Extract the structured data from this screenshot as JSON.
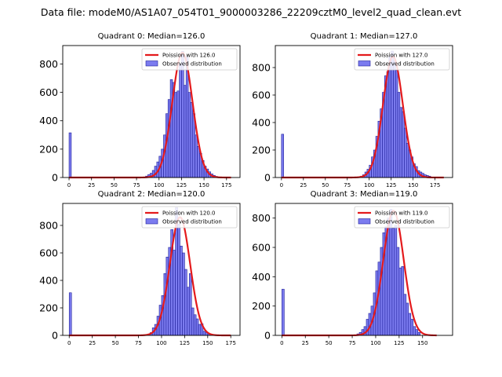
{
  "figure": {
    "suptitle": "Data file: modeM0/AS1A07_054T01_9000003286_22209cztM0_level2_quad_clean.evt"
  },
  "colors": {
    "bar_fill": "#7b7bef",
    "bar_edge": "#1f1f99",
    "poisson_line": "#e41a1c",
    "axis": "#000000"
  },
  "chart_data": [
    {
      "type": "bar",
      "title": "Quadrant 0: Median=126.0",
      "xlim": [
        -7,
        190
      ],
      "ylim": [
        0,
        930
      ],
      "xticks": [
        0,
        25,
        50,
        75,
        100,
        125,
        150,
        175
      ],
      "yticks": [
        0,
        200,
        400,
        600,
        800
      ],
      "bin_width": 2.5,
      "bins": [
        {
          "x": 0,
          "y": 315
        },
        {
          "x": 85,
          "y": 10
        },
        {
          "x": 87.5,
          "y": 20
        },
        {
          "x": 90,
          "y": 30
        },
        {
          "x": 92.5,
          "y": 50
        },
        {
          "x": 95,
          "y": 80
        },
        {
          "x": 97.5,
          "y": 110
        },
        {
          "x": 100,
          "y": 150
        },
        {
          "x": 102.5,
          "y": 200
        },
        {
          "x": 105,
          "y": 300
        },
        {
          "x": 107.5,
          "y": 450
        },
        {
          "x": 110,
          "y": 550
        },
        {
          "x": 112.5,
          "y": 690
        },
        {
          "x": 115,
          "y": 670
        },
        {
          "x": 117.5,
          "y": 600
        },
        {
          "x": 120,
          "y": 610
        },
        {
          "x": 122.5,
          "y": 800
        },
        {
          "x": 125,
          "y": 890
        },
        {
          "x": 127.5,
          "y": 650
        },
        {
          "x": 130,
          "y": 850
        },
        {
          "x": 132.5,
          "y": 600
        },
        {
          "x": 135,
          "y": 530
        },
        {
          "x": 137.5,
          "y": 450
        },
        {
          "x": 140,
          "y": 300
        },
        {
          "x": 142.5,
          "y": 220
        },
        {
          "x": 145,
          "y": 170
        },
        {
          "x": 147.5,
          "y": 120
        },
        {
          "x": 150,
          "y": 80
        },
        {
          "x": 152.5,
          "y": 60
        },
        {
          "x": 155,
          "y": 40
        },
        {
          "x": 157.5,
          "y": 25
        },
        {
          "x": 160,
          "y": 15
        },
        {
          "x": 162.5,
          "y": 8
        }
      ],
      "poisson_mean": 126.0,
      "poisson_peak": 880,
      "poisson_range": [
        0,
        180
      ],
      "legend": [
        "Poission with 126.0",
        "Observed distribution"
      ],
      "legend_loc": "top-right"
    },
    {
      "type": "bar",
      "title": "Quadrant 1: Median=127.0",
      "xlim": [
        -7,
        195
      ],
      "ylim": [
        0,
        960
      ],
      "xticks": [
        0,
        25,
        50,
        75,
        100,
        125,
        150,
        175
      ],
      "yticks": [
        0,
        200,
        400,
        600,
        800
      ],
      "bin_width": 2.5,
      "bins": [
        {
          "x": 0,
          "y": 315
        },
        {
          "x": 90,
          "y": 10
        },
        {
          "x": 92.5,
          "y": 20
        },
        {
          "x": 95,
          "y": 40
        },
        {
          "x": 97.5,
          "y": 60
        },
        {
          "x": 100,
          "y": 90
        },
        {
          "x": 102.5,
          "y": 150
        },
        {
          "x": 105,
          "y": 200
        },
        {
          "x": 107.5,
          "y": 300
        },
        {
          "x": 110,
          "y": 410
        },
        {
          "x": 112.5,
          "y": 500
        },
        {
          "x": 115,
          "y": 620
        },
        {
          "x": 117.5,
          "y": 740
        },
        {
          "x": 120,
          "y": 770
        },
        {
          "x": 122.5,
          "y": 880
        },
        {
          "x": 125,
          "y": 920
        },
        {
          "x": 127.5,
          "y": 850
        },
        {
          "x": 130,
          "y": 780
        },
        {
          "x": 132.5,
          "y": 620
        },
        {
          "x": 135,
          "y": 510
        },
        {
          "x": 137.5,
          "y": 480
        },
        {
          "x": 140,
          "y": 360
        },
        {
          "x": 142.5,
          "y": 250
        },
        {
          "x": 145,
          "y": 200
        },
        {
          "x": 147.5,
          "y": 150
        },
        {
          "x": 150,
          "y": 100
        },
        {
          "x": 152.5,
          "y": 80
        },
        {
          "x": 155,
          "y": 50
        },
        {
          "x": 157.5,
          "y": 40
        },
        {
          "x": 160,
          "y": 30
        },
        {
          "x": 162.5,
          "y": 20
        },
        {
          "x": 165,
          "y": 15
        },
        {
          "x": 167.5,
          "y": 10
        }
      ],
      "poisson_mean": 127.0,
      "poisson_peak": 880,
      "poisson_range": [
        0,
        185
      ],
      "legend": [
        "Poission with 127.0",
        "Observed distribution"
      ],
      "legend_loc": "top-right"
    },
    {
      "type": "bar",
      "title": "Quadrant 2: Median=120.0",
      "xlim": [
        -7,
        185
      ],
      "ylim": [
        0,
        960
      ],
      "xticks": [
        0,
        25,
        50,
        75,
        100,
        125,
        150,
        175
      ],
      "yticks": [
        0,
        200,
        400,
        600,
        800
      ],
      "bin_width": 2.5,
      "bins": [
        {
          "x": 0,
          "y": 310
        },
        {
          "x": 85,
          "y": 10
        },
        {
          "x": 87.5,
          "y": 20
        },
        {
          "x": 90,
          "y": 55
        },
        {
          "x": 92.5,
          "y": 80
        },
        {
          "x": 95,
          "y": 140
        },
        {
          "x": 97.5,
          "y": 220
        },
        {
          "x": 100,
          "y": 290
        },
        {
          "x": 102.5,
          "y": 450
        },
        {
          "x": 105,
          "y": 570
        },
        {
          "x": 107.5,
          "y": 640
        },
        {
          "x": 110,
          "y": 770
        },
        {
          "x": 112.5,
          "y": 620
        },
        {
          "x": 115,
          "y": 930
        },
        {
          "x": 117.5,
          "y": 810
        },
        {
          "x": 120,
          "y": 650
        },
        {
          "x": 122.5,
          "y": 600
        },
        {
          "x": 125,
          "y": 480
        },
        {
          "x": 127.5,
          "y": 350
        },
        {
          "x": 130,
          "y": 450
        },
        {
          "x": 132.5,
          "y": 200
        },
        {
          "x": 135,
          "y": 150
        },
        {
          "x": 137.5,
          "y": 120
        },
        {
          "x": 140,
          "y": 80
        },
        {
          "x": 142.5,
          "y": 85
        },
        {
          "x": 145,
          "y": 30
        },
        {
          "x": 147.5,
          "y": 20
        },
        {
          "x": 150,
          "y": 10
        }
      ],
      "poisson_mean": 120.0,
      "poisson_peak": 860,
      "poisson_range": [
        0,
        175
      ],
      "legend": [
        "Poission with 120.0",
        "Observed distribution"
      ],
      "legend_loc": "top-right"
    },
    {
      "type": "bar",
      "title": "Quadrant 3: Median=119.0",
      "xlim": [
        -7,
        182
      ],
      "ylim": [
        0,
        900
      ],
      "xticks": [
        0,
        25,
        50,
        75,
        100,
        125,
        150
      ],
      "yticks": [
        0,
        200,
        400,
        600,
        800
      ],
      "bin_width": 2.5,
      "bins": [
        {
          "x": 0,
          "y": 315
        },
        {
          "x": 80,
          "y": 10
        },
        {
          "x": 82.5,
          "y": 20
        },
        {
          "x": 85,
          "y": 40
        },
        {
          "x": 87.5,
          "y": 60
        },
        {
          "x": 90,
          "y": 110
        },
        {
          "x": 92.5,
          "y": 150
        },
        {
          "x": 95,
          "y": 200
        },
        {
          "x": 97.5,
          "y": 290
        },
        {
          "x": 100,
          "y": 440
        },
        {
          "x": 102.5,
          "y": 500
        },
        {
          "x": 105,
          "y": 600
        },
        {
          "x": 107.5,
          "y": 700
        },
        {
          "x": 110,
          "y": 740
        },
        {
          "x": 112.5,
          "y": 800
        },
        {
          "x": 115,
          "y": 860
        },
        {
          "x": 117.5,
          "y": 730
        },
        {
          "x": 120,
          "y": 750
        },
        {
          "x": 122.5,
          "y": 600
        },
        {
          "x": 125,
          "y": 460
        },
        {
          "x": 127.5,
          "y": 470
        },
        {
          "x": 130,
          "y": 280
        },
        {
          "x": 132.5,
          "y": 220
        },
        {
          "x": 135,
          "y": 150
        },
        {
          "x": 137.5,
          "y": 110
        },
        {
          "x": 140,
          "y": 60
        },
        {
          "x": 142.5,
          "y": 40
        },
        {
          "x": 145,
          "y": 20
        }
      ],
      "poisson_mean": 119.0,
      "poisson_peak": 850,
      "poisson_range": [
        0,
        165
      ],
      "legend": [
        "Poission with 119.0",
        "Observed distribution"
      ],
      "legend_loc": "top-right"
    }
  ]
}
